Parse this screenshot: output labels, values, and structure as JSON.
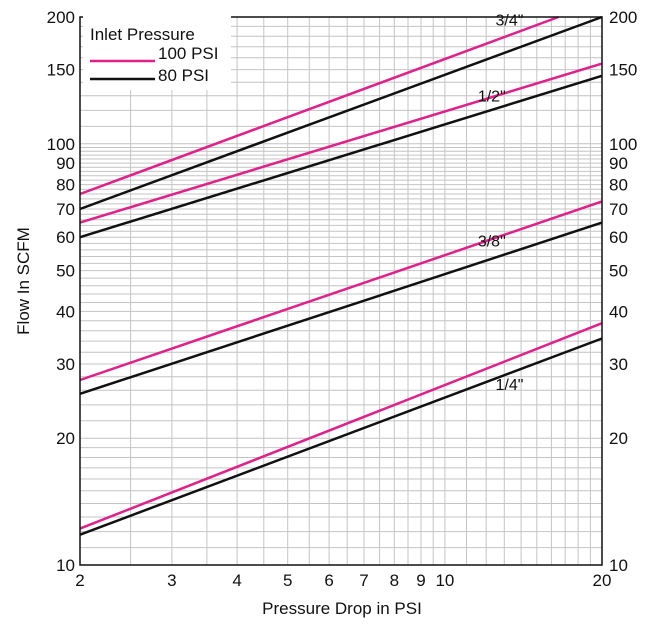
{
  "chart_data": {
    "type": "line",
    "xscale": "log",
    "yscale": "log",
    "xlim": [
      2,
      20
    ],
    "ylim": [
      10,
      200
    ],
    "xlabel": "Pressure Drop in PSI",
    "ylabel": "Flow In SCFM",
    "x_ticks": [
      {
        "value": 2,
        "label": "2"
      },
      {
        "value": 3,
        "label": "3"
      },
      {
        "value": 4,
        "label": "4"
      },
      {
        "value": 5,
        "label": "5"
      },
      {
        "value": 6,
        "label": "6"
      },
      {
        "value": 7,
        "label": "7"
      },
      {
        "value": 8,
        "label": "8"
      },
      {
        "value": 9,
        "label": "9"
      },
      {
        "value": 10,
        "label": "10"
      },
      {
        "value": 20,
        "label": "20"
      }
    ],
    "y_ticks": [
      {
        "value": 10,
        "label": "10"
      },
      {
        "value": 20,
        "label": "20"
      },
      {
        "value": 30,
        "label": "30"
      },
      {
        "value": 40,
        "label": "40"
      },
      {
        "value": 50,
        "label": "50"
      },
      {
        "value": 60,
        "label": "60"
      },
      {
        "value": 70,
        "label": "70"
      },
      {
        "value": 80,
        "label": "80"
      },
      {
        "value": 90,
        "label": "90"
      },
      {
        "value": 100,
        "label": "100"
      },
      {
        "value": 150,
        "label": "150"
      },
      {
        "value": 200,
        "label": "200"
      }
    ],
    "grid": true,
    "legend": {
      "title": "Inlet Pressure",
      "placement": "top-left",
      "entries": [
        {
          "label": "100 PSI",
          "color": "#e0218a"
        },
        {
          "label": "80 PSI",
          "color": "#111111"
        }
      ]
    },
    "series": [
      {
        "size": "3/4\"",
        "pressure": "100 PSI",
        "color": "#e0218a",
        "x": [
          2,
          16.5
        ],
        "y": [
          76,
          200
        ]
      },
      {
        "size": "3/4\"",
        "pressure": "80 PSI",
        "color": "#111111",
        "x": [
          2,
          20
        ],
        "y": [
          70,
          200
        ]
      },
      {
        "size": "1/2\"",
        "pressure": "100 PSI",
        "color": "#e0218a",
        "x": [
          2,
          20
        ],
        "y": [
          65,
          155
        ]
      },
      {
        "size": "1/2\"",
        "pressure": "80 PSI",
        "color": "#111111",
        "x": [
          2,
          20
        ],
        "y": [
          60,
          145
        ]
      },
      {
        "size": "3/8\"",
        "pressure": "100 PSI",
        "color": "#e0218a",
        "x": [
          2,
          20
        ],
        "y": [
          27.5,
          73
        ]
      },
      {
        "size": "3/8\"",
        "pressure": "80 PSI",
        "color": "#111111",
        "x": [
          2,
          20
        ],
        "y": [
          25.5,
          65
        ]
      },
      {
        "size": "1/4\"",
        "pressure": "100 PSI",
        "color": "#e0218a",
        "x": [
          2,
          20
        ],
        "y": [
          12.2,
          37.5
        ]
      },
      {
        "size": "1/4\"",
        "pressure": "80 PSI",
        "color": "#111111",
        "x": [
          2,
          20
        ],
        "y": [
          11.8,
          34.5
        ]
      }
    ],
    "size_labels": [
      {
        "text": "3/4\"",
        "x": 13.3,
        "y": 191
      },
      {
        "text": "1/2\"",
        "x": 12.3,
        "y": 126
      },
      {
        "text": "3/8\"",
        "x": 12.3,
        "y": 57
      },
      {
        "text": "1/4\"",
        "x": 13.3,
        "y": 26
      }
    ]
  }
}
